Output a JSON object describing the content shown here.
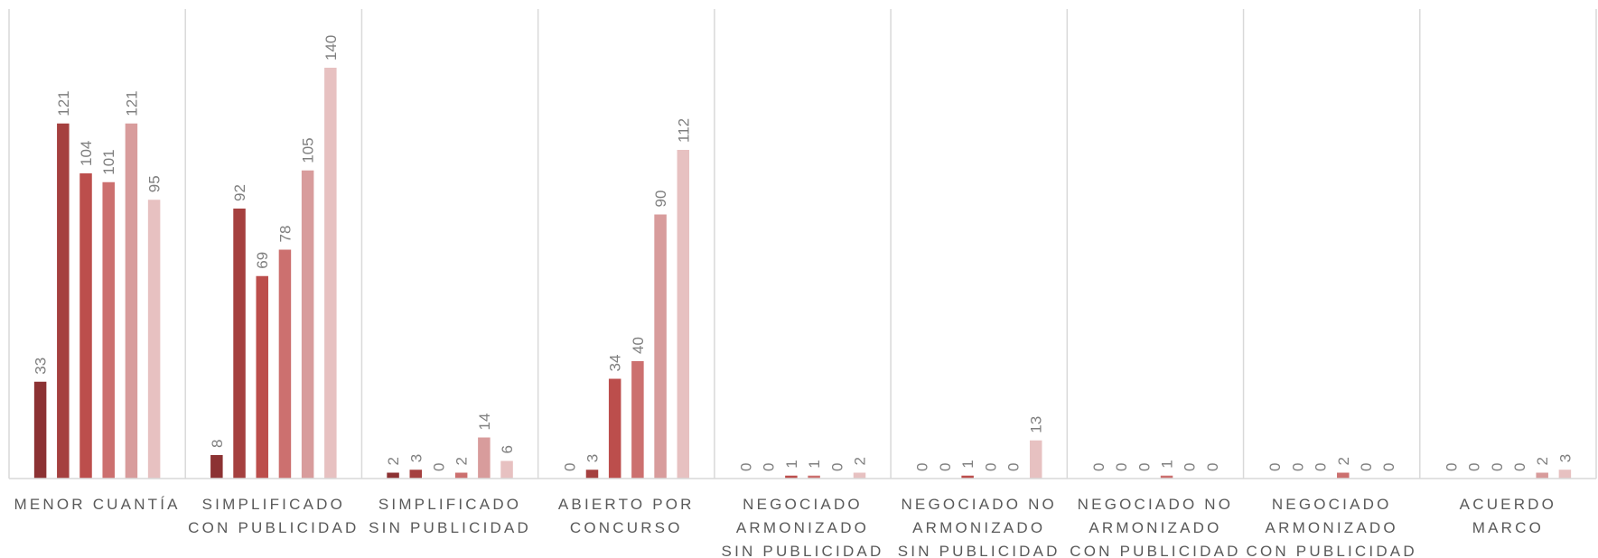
{
  "chart_data": {
    "type": "bar",
    "title": "",
    "xlabel": "",
    "ylabel": "",
    "ylim": [
      0,
      160
    ],
    "grid": false,
    "legend": "none",
    "categories": [
      [
        "MENOR CUANTÍA"
      ],
      [
        "SIMPLIFICADO",
        "CON PUBLICIDAD"
      ],
      [
        "SIMPLIFICADO",
        "SIN PUBLICIDAD"
      ],
      [
        "ABIERTO POR",
        "CONCURSO"
      ],
      [
        "NEGOCIADO",
        "ARMONIZADO",
        "SIN PUBLICIDAD"
      ],
      [
        "NEGOCIADO NO",
        "ARMONIZADO",
        "SIN PUBLICIDAD"
      ],
      [
        "NEGOCIADO NO",
        "ARMONIZADO",
        "CON PUBLICIDAD"
      ],
      [
        "NEGOCIADO",
        "ARMONIZADO",
        "CON PUBLICIDAD"
      ],
      [
        "ACUERDO",
        "MARCO"
      ]
    ],
    "series": [
      {
        "color": "#8c3233",
        "values": [
          33,
          8,
          2,
          0,
          0,
          0,
          0,
          0,
          0
        ]
      },
      {
        "color": "#a5403f",
        "values": [
          121,
          92,
          3,
          3,
          0,
          0,
          0,
          0,
          0
        ]
      },
      {
        "color": "#bc4e4c",
        "values": [
          104,
          69,
          0,
          34,
          1,
          1,
          0,
          0,
          0
        ]
      },
      {
        "color": "#cc706f",
        "values": [
          101,
          78,
          2,
          40,
          1,
          0,
          1,
          2,
          0
        ]
      },
      {
        "color": "#d89c9c",
        "values": [
          121,
          105,
          14,
          90,
          0,
          0,
          0,
          0,
          2
        ]
      },
      {
        "color": "#e7c1c1",
        "values": [
          95,
          140,
          6,
          112,
          2,
          13,
          0,
          0,
          3
        ]
      }
    ]
  }
}
